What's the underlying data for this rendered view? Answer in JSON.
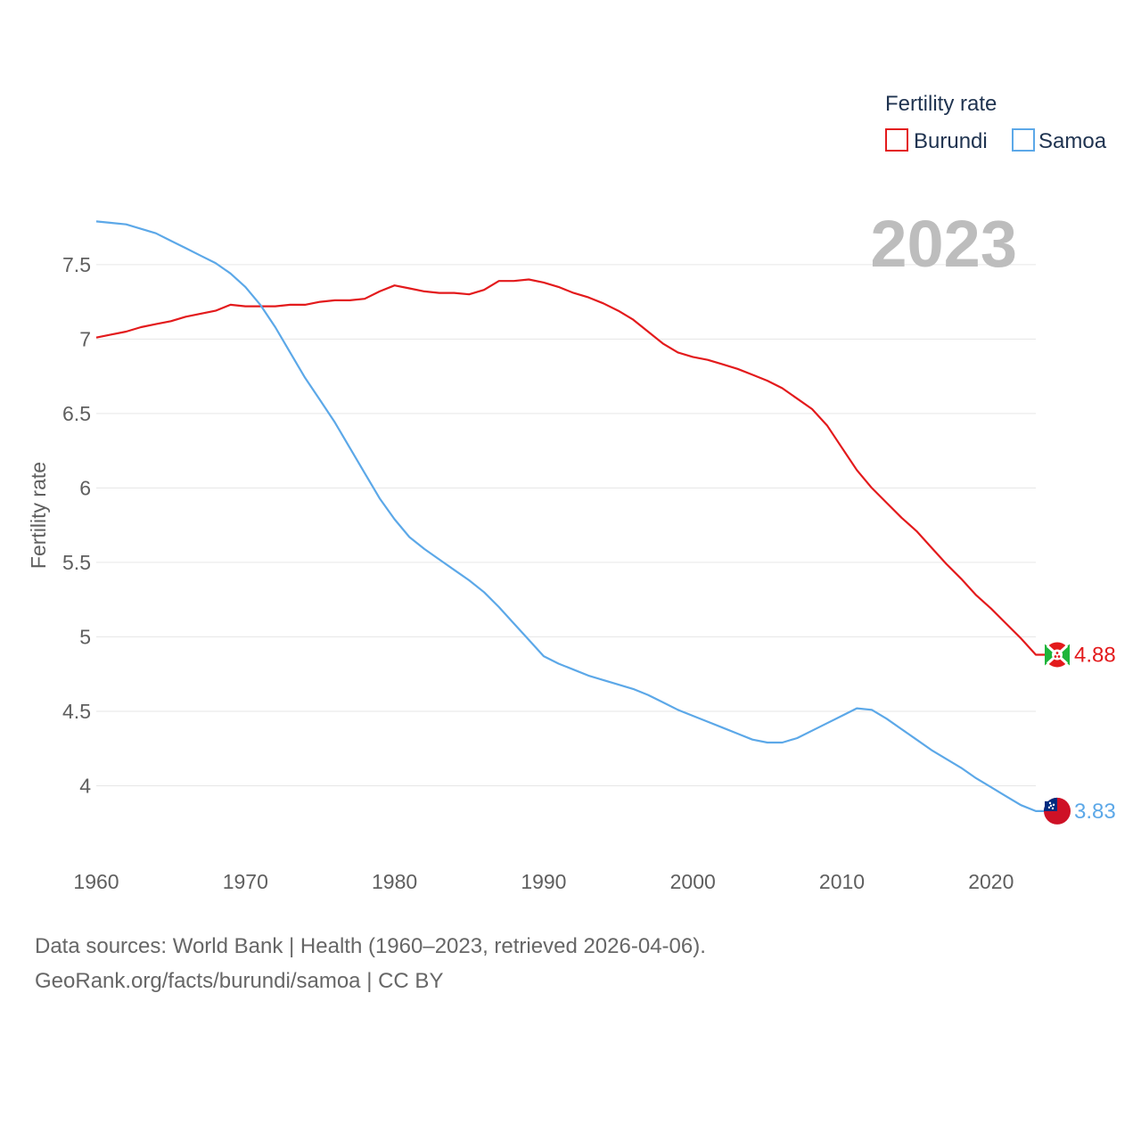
{
  "chart_data": {
    "type": "line",
    "year_label": "2023",
    "legend": {
      "title": "Fertility rate",
      "placement": "top-right"
    },
    "ylabel": "Fertility rate",
    "xlabel": "",
    "xlim": [
      1960,
      2023
    ],
    "ylim": [
      3.5,
      7.9
    ],
    "x_ticks": [
      "1960",
      "1970",
      "1980",
      "1990",
      "2000",
      "2010",
      "2020"
    ],
    "y_ticks": [
      "4",
      "4.5",
      "5",
      "5.5",
      "6",
      "6.5",
      "7",
      "7.5"
    ],
    "x": [
      1960,
      1961,
      1962,
      1963,
      1964,
      1965,
      1966,
      1967,
      1968,
      1969,
      1970,
      1971,
      1972,
      1973,
      1974,
      1975,
      1976,
      1977,
      1978,
      1979,
      1980,
      1981,
      1982,
      1983,
      1984,
      1985,
      1986,
      1987,
      1988,
      1989,
      1990,
      1991,
      1992,
      1993,
      1994,
      1995,
      1996,
      1997,
      1998,
      1999,
      2000,
      2001,
      2002,
      2003,
      2004,
      2005,
      2006,
      2007,
      2008,
      2009,
      2010,
      2011,
      2012,
      2013,
      2014,
      2015,
      2016,
      2017,
      2018,
      2019,
      2020,
      2021,
      2022,
      2023
    ],
    "series": [
      {
        "name": "Burundi",
        "color": "#e31a1c",
        "end_label": "4.88",
        "flag": "burundi-flag-icon",
        "values": [
          7.01,
          7.03,
          7.05,
          7.08,
          7.1,
          7.12,
          7.15,
          7.17,
          7.19,
          7.23,
          7.22,
          7.22,
          7.22,
          7.23,
          7.23,
          7.25,
          7.26,
          7.26,
          7.27,
          7.32,
          7.36,
          7.34,
          7.32,
          7.31,
          7.31,
          7.3,
          7.33,
          7.39,
          7.39,
          7.4,
          7.38,
          7.35,
          7.31,
          7.28,
          7.24,
          7.19,
          7.13,
          7.05,
          6.97,
          6.91,
          6.88,
          6.86,
          6.83,
          6.8,
          6.76,
          6.72,
          6.67,
          6.6,
          6.53,
          6.42,
          6.27,
          6.12,
          6.0,
          5.9,
          5.8,
          5.71,
          5.6,
          5.49,
          5.39,
          5.28,
          5.19,
          5.09,
          4.99,
          4.88
        ]
      },
      {
        "name": "Samoa",
        "color": "#5ca8e8",
        "end_label": "3.83",
        "flag": "samoa-flag-icon",
        "values": [
          7.79,
          7.78,
          7.77,
          7.74,
          7.71,
          7.66,
          7.61,
          7.56,
          7.51,
          7.44,
          7.35,
          7.23,
          7.08,
          6.91,
          6.74,
          6.59,
          6.44,
          6.27,
          6.1,
          5.93,
          5.79,
          5.67,
          5.59,
          5.52,
          5.45,
          5.38,
          5.3,
          5.2,
          5.09,
          4.98,
          4.87,
          4.82,
          4.78,
          4.74,
          4.71,
          4.68,
          4.65,
          4.61,
          4.56,
          4.51,
          4.47,
          4.43,
          4.39,
          4.35,
          4.31,
          4.29,
          4.29,
          4.32,
          4.37,
          4.42,
          4.47,
          4.52,
          4.51,
          4.45,
          4.38,
          4.31,
          4.24,
          4.18,
          4.12,
          4.05,
          3.99,
          3.93,
          3.87,
          3.83
        ]
      }
    ]
  },
  "footer": {
    "line1": "Data sources: World Bank | Health (1960–2023, retrieved 2026-04-06).",
    "line2": "GeoRank.org/facts/burundi/samoa | CC BY"
  }
}
